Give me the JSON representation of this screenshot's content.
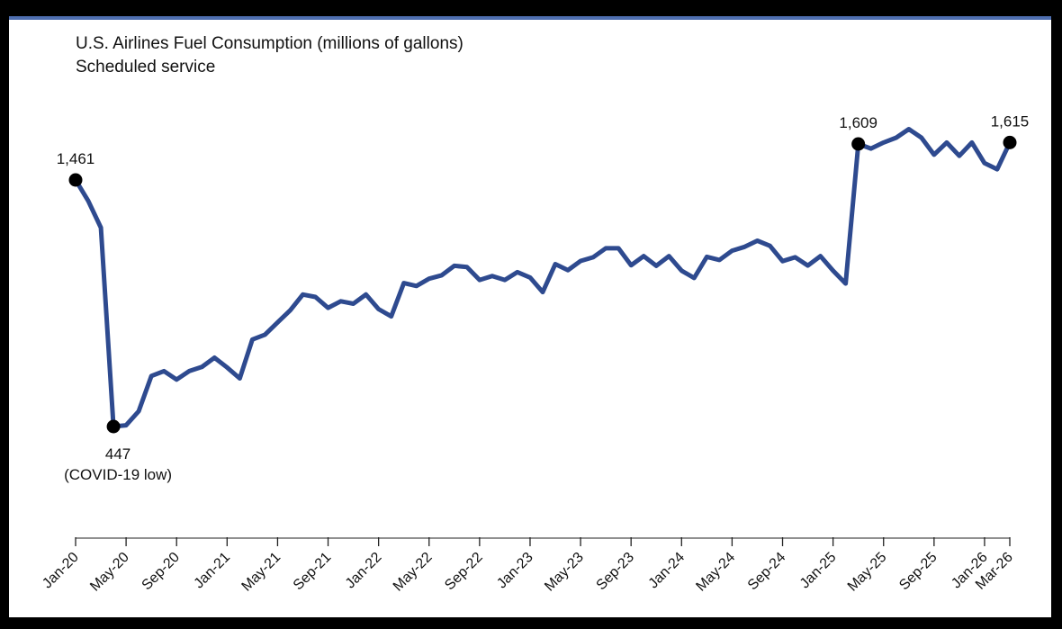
{
  "chart_data": {
    "type": "line",
    "title": "U.S. Airlines Fuel Consumption (millions of gallons)",
    "subtitle": "Scheduled service",
    "xlabel": "",
    "ylabel": "",
    "ylim": [
      0,
      1800
    ],
    "grid": false,
    "legend": "none",
    "line_color": "#2e4a8f",
    "x_tick_labels": [
      "Jan-20",
      "May-20",
      "Sep-20",
      "Jan-21",
      "May-21",
      "Sep-21",
      "Jan-22",
      "May-22",
      "Sep-22",
      "Jan-23",
      "May-23",
      "Sep-23",
      "Jan-24",
      "May-24",
      "Sep-24",
      "Jan-25",
      "May-25",
      "Sep-25",
      "Jan-26",
      "Mar-26"
    ],
    "x": [
      "Jan-20",
      "Feb-20",
      "Mar-20",
      "Apr-20",
      "May-20",
      "Jun-20",
      "Jul-20",
      "Aug-20",
      "Sep-20",
      "Oct-20",
      "Nov-20",
      "Dec-20",
      "Jan-21",
      "Feb-21",
      "Mar-21",
      "Apr-21",
      "May-21",
      "Jun-21",
      "Jul-21",
      "Aug-21",
      "Sep-21",
      "Oct-21",
      "Nov-21",
      "Dec-21",
      "Jan-22",
      "Feb-22",
      "Mar-22",
      "Apr-22",
      "May-22",
      "Jun-22",
      "Jul-22",
      "Aug-22",
      "Sep-22",
      "Oct-22",
      "Nov-22",
      "Dec-22",
      "Jan-23",
      "Feb-23",
      "Mar-23",
      "Apr-23",
      "May-23",
      "Jun-23",
      "Jul-23",
      "Aug-23",
      "Sep-23",
      "Oct-23",
      "Nov-23",
      "Dec-23",
      "Jan-24",
      "Feb-24",
      "Mar-24",
      "Apr-24",
      "May-24",
      "Jun-24",
      "Jul-24",
      "Aug-24",
      "Sep-24",
      "Oct-24",
      "Nov-24",
      "Dec-24",
      "Jan-25",
      "Feb-25",
      "Mar-25",
      "Apr-25",
      "May-25",
      "Jun-25",
      "Jul-25",
      "Aug-25",
      "Sep-25",
      "Oct-25",
      "Nov-25",
      "Dec-25",
      "Jan-26",
      "Feb-26",
      "Mar-26"
    ],
    "series": [
      {
        "values": [
          1461,
          1375,
          1265,
          447,
          452,
          510,
          655,
          675,
          640,
          675,
          692,
          730,
          690,
          645,
          805,
          825,
          875,
          925,
          990,
          980,
          935,
          962,
          952,
          990,
          930,
          900,
          1037,
          1025,
          1055,
          1069,
          1108,
          1103,
          1050,
          1066,
          1050,
          1082,
          1060,
          1000,
          1115,
          1090,
          1128,
          1143,
          1180,
          1180,
          1110,
          1148,
          1108,
          1148,
          1088,
          1058,
          1145,
          1132,
          1170,
          1186,
          1211,
          1190,
          1127,
          1143,
          1109,
          1148,
          1088,
          1035,
          1609,
          1590,
          1615,
          1635,
          1670,
          1635,
          1565,
          1615,
          1560,
          1615,
          1530,
          1505,
          1615
        ]
      }
    ],
    "annotations": [
      {
        "x": "Jan-20",
        "value": 1461,
        "label": "1,461"
      },
      {
        "x": "Apr-20",
        "value": 447,
        "label": "447",
        "note": "(COVID-19 low)"
      },
      {
        "x": "Mar-25",
        "value": 1609,
        "label": "1,609"
      },
      {
        "x": "Mar-26",
        "value": 1615,
        "label": "1,615"
      }
    ]
  }
}
